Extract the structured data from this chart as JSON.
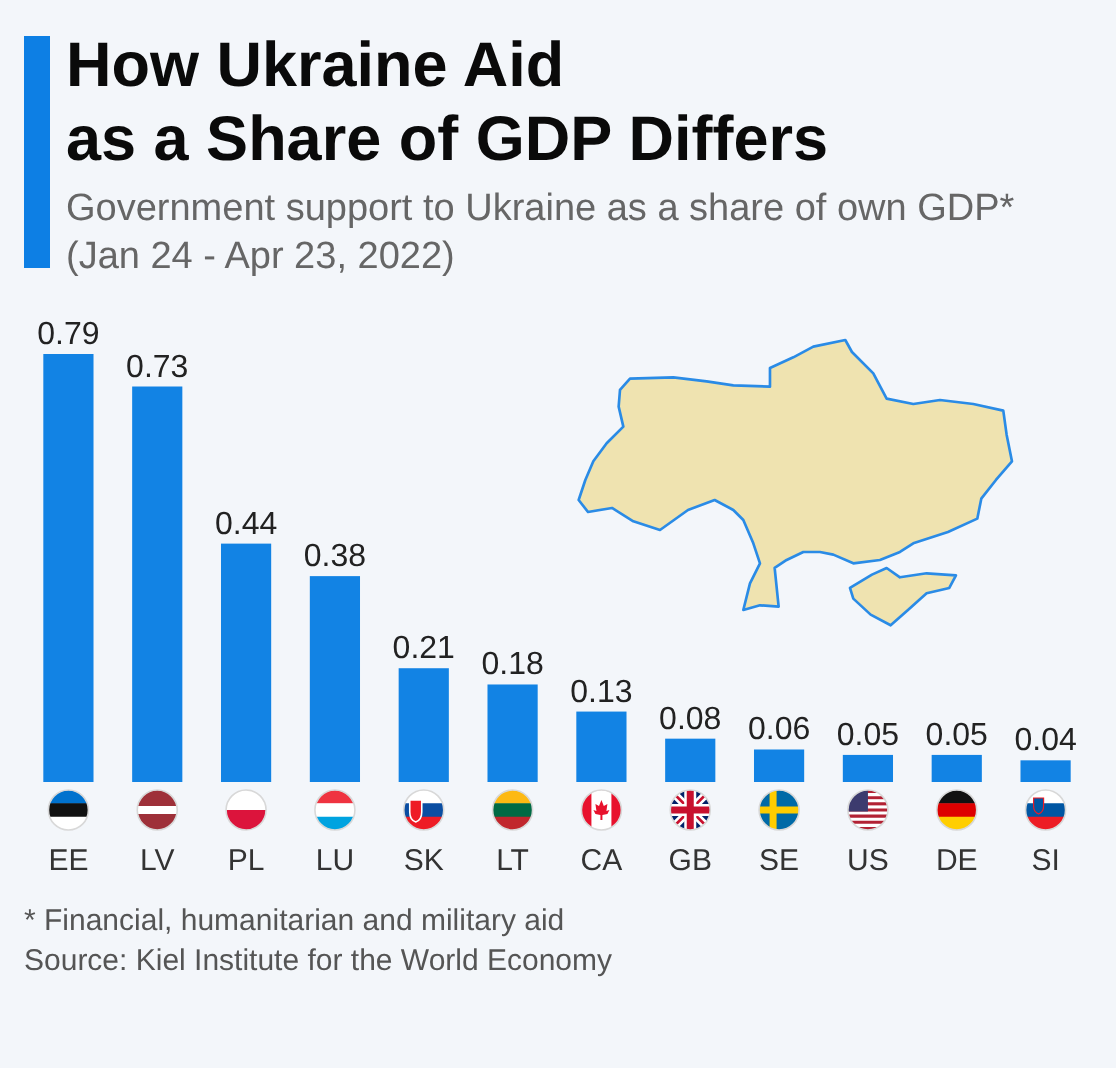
{
  "chart_data": {
    "type": "bar",
    "title": "How Ukraine Aid\nas a Share of GDP Differs",
    "subtitle": "Government support to Ukraine as a share of own GDP*\n(Jan 24 - Apr 23, 2022)",
    "categories": [
      "EE",
      "LV",
      "PL",
      "LU",
      "SK",
      "LT",
      "CA",
      "GB",
      "SE",
      "US",
      "DE",
      "SI"
    ],
    "values": [
      0.79,
      0.73,
      0.44,
      0.38,
      0.21,
      0.18,
      0.13,
      0.08,
      0.06,
      0.05,
      0.05,
      0.04
    ],
    "color": "#1283e4",
    "data_labels": true,
    "annotations": [
      "* Financial, humanitarian and military aid",
      "Source: Kiel Institute for the World Economy"
    ]
  }
}
